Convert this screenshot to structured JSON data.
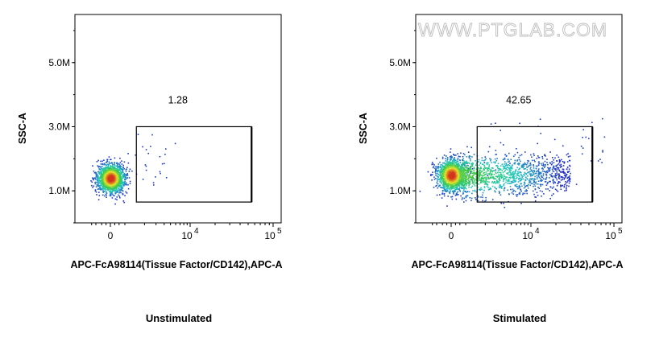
{
  "watermark": "WWW.PTGLAB.COM",
  "colors": {
    "density_low": "#1f2dc8",
    "density_mid": "#22c8c0",
    "density_high": "#e6e62a",
    "density_max": "#d4331c",
    "gate": "#000000"
  },
  "chart_data": [
    {
      "type": "scatter",
      "subtype": "flow-cytometry-density-plot",
      "caption": "Unstimulated",
      "xlabel": "APC-FcA98114(Tissue Factor/CD142),APC-A",
      "ylabel": "SSC-A",
      "xscale": "biexponential",
      "x_ticks": [
        {
          "label": "0",
          "value": 0
        },
        {
          "label": "10",
          "sup": "4",
          "value": 10000
        },
        {
          "label": "10",
          "sup": "5",
          "value": 100000
        }
      ],
      "y_ticks": [
        {
          "label": "1.0M",
          "value": 1000000
        },
        {
          "label": "3.0M",
          "value": 3000000
        },
        {
          "label": "5.0M",
          "value": 5000000
        }
      ],
      "ylim": [
        0,
        6500000
      ],
      "gate": {
        "label": "1.28",
        "x_range": [
          1500,
          55000
        ],
        "y_range": [
          650000,
          3000000
        ]
      },
      "population": {
        "x_center": 0,
        "y_center": 1400000,
        "fraction_in_gate": 0.0128
      }
    },
    {
      "type": "scatter",
      "subtype": "flow-cytometry-density-plot",
      "caption": "Stimulated",
      "xlabel": "APC-FcA98114(Tissue Factor/CD142),APC-A",
      "ylabel": "SSC-A",
      "xscale": "biexponential",
      "x_ticks": [
        {
          "label": "0",
          "value": 0
        },
        {
          "label": "10",
          "sup": "4",
          "value": 10000
        },
        {
          "label": "10",
          "sup": "5",
          "value": 100000
        }
      ],
      "y_ticks": [
        {
          "label": "1.0M",
          "value": 1000000
        },
        {
          "label": "3.0M",
          "value": 3000000
        },
        {
          "label": "5.0M",
          "value": 5000000
        }
      ],
      "ylim": [
        0,
        6500000
      ],
      "gate": {
        "label": "42.65",
        "x_range": [
          1500,
          55000
        ],
        "y_range": [
          650000,
          3000000
        ]
      },
      "population": {
        "x_center": 500,
        "y_center": 1500000,
        "fraction_in_gate": 0.4265
      }
    }
  ]
}
